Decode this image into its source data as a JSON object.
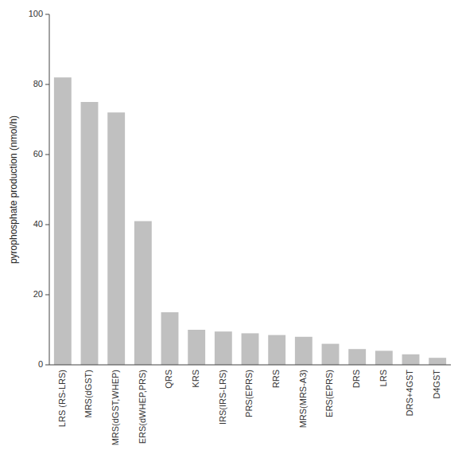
{
  "chart_data": {
    "type": "bar",
    "ylabel": "pyrophosphate production (nmol/h)",
    "categories": [
      "LRS (RS-LRS)",
      "MRS(dGST)",
      "MRS(dGST,WHEP)",
      "ERS(dWHEP,PRS)",
      "QRS",
      "KRS",
      "IRS(IRS-LRS)",
      "PRS(EPRS)",
      "RRS",
      "MRS(MRS-A3)",
      "ERS(EPRS)",
      "DRS",
      "LRS",
      "DRS+4GST",
      "D4GST"
    ],
    "values": [
      82,
      75,
      72,
      41,
      15,
      10,
      9.5,
      9,
      8.5,
      8,
      6,
      4.5,
      4,
      3,
      2
    ],
    "color": "#c0c0c0",
    "ylim": [
      0,
      100
    ],
    "yticks": [
      0,
      20,
      40,
      60,
      80,
      100
    ],
    "grid": false
  }
}
